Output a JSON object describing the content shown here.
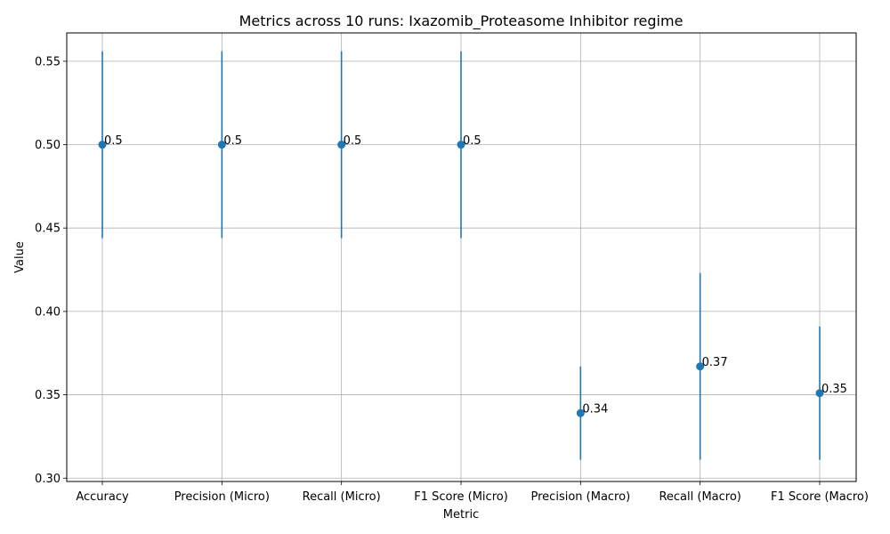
{
  "chart_data": {
    "type": "scatter",
    "title": "Metrics across 10 runs: Ixazomib_Proteasome Inhibitor regime",
    "xlabel": "Metric",
    "ylabel": "Value",
    "categories": [
      "Accuracy",
      "Precision (Micro)",
      "Recall (Micro)",
      "F1 Score (Micro)",
      "Precision (Macro)",
      "Recall (Macro)",
      "F1 Score (Macro)"
    ],
    "values": [
      0.5,
      0.5,
      0.5,
      0.5,
      0.339,
      0.367,
      0.351
    ],
    "error_low": [
      0.444,
      0.444,
      0.444,
      0.444,
      0.311,
      0.311,
      0.311
    ],
    "error_high": [
      0.556,
      0.556,
      0.556,
      0.556,
      0.367,
      0.423,
      0.391
    ],
    "data_labels": [
      "0.5",
      "0.5",
      "0.5",
      "0.5",
      "0.34",
      "0.37",
      "0.35"
    ],
    "ylim": [
      0.298,
      0.567
    ],
    "yticks": [
      0.3,
      0.35,
      0.4,
      0.45,
      0.5,
      0.55
    ],
    "ytick_labels": [
      "0.30",
      "0.35",
      "0.40",
      "0.45",
      "0.50",
      "0.55"
    ],
    "grid": true,
    "legend": "none",
    "colors": {
      "marker": "#1f77b4",
      "errorbar": "#1f77b4",
      "grid": "#b0b0b0"
    }
  }
}
